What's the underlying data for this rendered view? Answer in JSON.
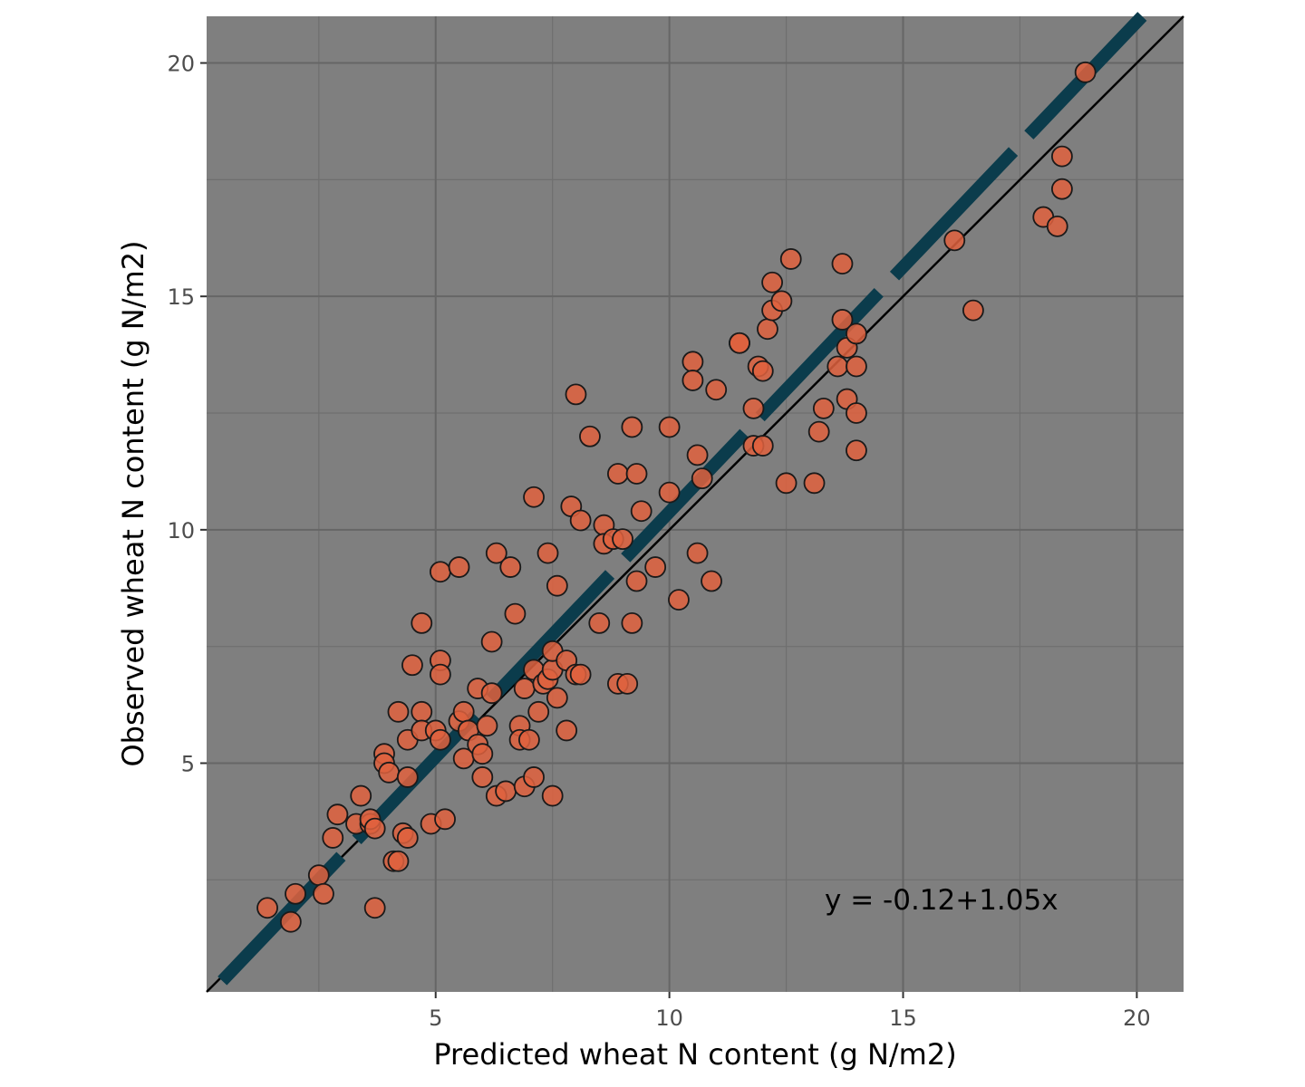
{
  "chart_data": {
    "type": "scatter",
    "title": "",
    "xlabel": "Predicted wheat N content (g N/m2)",
    "ylabel": "Observed wheat N content (g N/m2)",
    "xlim": [
      0.1,
      21
    ],
    "ylim": [
      0.1,
      21
    ],
    "x_major_ticks": [
      5,
      10,
      15,
      20
    ],
    "y_major_ticks": [
      5,
      10,
      15,
      20
    ],
    "x_tick_labels": [
      "5",
      "10",
      "15",
      "20"
    ],
    "y_tick_labels": [
      "5",
      "10",
      "15",
      "20"
    ],
    "x_minor_ticks": [
      2.5,
      7.5,
      12.5,
      17.5
    ],
    "y_minor_ticks": [
      2.5,
      7.5,
      12.5,
      17.5
    ],
    "grid": true,
    "annotation": "y = -0.12+1.05x",
    "identity_line": {
      "intercept": 0,
      "slope": 1,
      "color": "#000000"
    },
    "regression_line": {
      "intercept": -0.12,
      "slope": 1.05,
      "color": "#0b3c4c",
      "style": "dashed"
    },
    "colors": {
      "panel_bg": "#7f7f7f",
      "grid_major": "#666666",
      "grid_minor": "#6f6f6f",
      "point_fill": "#e0613e",
      "point_stroke": "#1a1a1a"
    },
    "series": [
      {
        "name": "observations",
        "points": [
          [
            1.4,
            1.9
          ],
          [
            1.9,
            1.6
          ],
          [
            2.0,
            2.2
          ],
          [
            2.5,
            2.6
          ],
          [
            2.6,
            2.2
          ],
          [
            2.8,
            3.4
          ],
          [
            2.9,
            3.9
          ],
          [
            3.3,
            3.7
          ],
          [
            3.4,
            4.3
          ],
          [
            3.6,
            3.7
          ],
          [
            3.6,
            3.8
          ],
          [
            3.7,
            3.6
          ],
          [
            3.7,
            1.9
          ],
          [
            3.9,
            5.2
          ],
          [
            3.9,
            5.0
          ],
          [
            4.0,
            4.8
          ],
          [
            4.1,
            2.9
          ],
          [
            4.2,
            2.9
          ],
          [
            4.2,
            6.1
          ],
          [
            4.3,
            3.5
          ],
          [
            4.4,
            3.4
          ],
          [
            4.4,
            4.7
          ],
          [
            4.4,
            5.5
          ],
          [
            4.5,
            7.1
          ],
          [
            4.7,
            6.1
          ],
          [
            4.7,
            5.7
          ],
          [
            4.7,
            8.0
          ],
          [
            4.9,
            3.7
          ],
          [
            5.0,
            5.7
          ],
          [
            5.1,
            5.5
          ],
          [
            5.1,
            7.2
          ],
          [
            5.1,
            6.9
          ],
          [
            5.1,
            9.1
          ],
          [
            5.2,
            3.8
          ],
          [
            5.5,
            9.2
          ],
          [
            5.5,
            5.9
          ],
          [
            5.6,
            6.1
          ],
          [
            5.6,
            5.1
          ],
          [
            5.7,
            5.7
          ],
          [
            5.9,
            6.6
          ],
          [
            5.9,
            5.4
          ],
          [
            6.0,
            5.2
          ],
          [
            6.0,
            4.7
          ],
          [
            6.1,
            5.8
          ],
          [
            6.2,
            6.5
          ],
          [
            6.2,
            7.6
          ],
          [
            6.3,
            4.3
          ],
          [
            6.3,
            9.5
          ],
          [
            6.5,
            4.4
          ],
          [
            6.6,
            9.2
          ],
          [
            6.7,
            8.2
          ],
          [
            6.8,
            5.8
          ],
          [
            6.8,
            5.5
          ],
          [
            6.9,
            4.5
          ],
          [
            6.9,
            6.6
          ],
          [
            7.0,
            5.5
          ],
          [
            7.1,
            4.7
          ],
          [
            7.1,
            7.0
          ],
          [
            7.1,
            10.7
          ],
          [
            7.2,
            6.1
          ],
          [
            7.3,
            6.7
          ],
          [
            7.4,
            9.5
          ],
          [
            7.4,
            6.8
          ],
          [
            7.5,
            7.0
          ],
          [
            7.5,
            7.4
          ],
          [
            7.5,
            4.3
          ],
          [
            7.6,
            6.4
          ],
          [
            7.6,
            8.8
          ],
          [
            7.8,
            5.7
          ],
          [
            7.8,
            7.2
          ],
          [
            7.9,
            10.5
          ],
          [
            8.0,
            12.9
          ],
          [
            8.0,
            6.9
          ],
          [
            8.1,
            10.2
          ],
          [
            8.1,
            6.9
          ],
          [
            8.3,
            12.0
          ],
          [
            8.5,
            8.0
          ],
          [
            8.6,
            10.1
          ],
          [
            8.6,
            9.7
          ],
          [
            8.8,
            9.8
          ],
          [
            8.9,
            11.2
          ],
          [
            8.9,
            6.7
          ],
          [
            9.0,
            9.8
          ],
          [
            9.1,
            6.7
          ],
          [
            9.2,
            12.2
          ],
          [
            9.2,
            8.0
          ],
          [
            9.3,
            11.2
          ],
          [
            9.3,
            8.9
          ],
          [
            9.4,
            10.4
          ],
          [
            9.7,
            9.2
          ],
          [
            10.0,
            12.2
          ],
          [
            10.0,
            10.8
          ],
          [
            10.2,
            8.5
          ],
          [
            10.5,
            13.6
          ],
          [
            10.5,
            13.2
          ],
          [
            10.6,
            9.5
          ],
          [
            10.6,
            11.6
          ],
          [
            10.7,
            11.1
          ],
          [
            10.9,
            8.9
          ],
          [
            11.0,
            13.0
          ],
          [
            11.5,
            14.0
          ],
          [
            11.5,
            14.0
          ],
          [
            11.8,
            12.6
          ],
          [
            11.8,
            11.8
          ],
          [
            11.9,
            13.5
          ],
          [
            12.0,
            11.8
          ],
          [
            12.0,
            13.4
          ],
          [
            12.1,
            14.3
          ],
          [
            12.2,
            14.7
          ],
          [
            12.2,
            15.3
          ],
          [
            12.4,
            14.9
          ],
          [
            12.5,
            11.0
          ],
          [
            12.6,
            15.8
          ],
          [
            13.1,
            11.0
          ],
          [
            13.2,
            12.1
          ],
          [
            13.3,
            12.6
          ],
          [
            13.6,
            13.5
          ],
          [
            13.7,
            15.7
          ],
          [
            13.7,
            14.5
          ],
          [
            13.8,
            13.9
          ],
          [
            13.8,
            12.8
          ],
          [
            14.0,
            14.2
          ],
          [
            14.0,
            13.5
          ],
          [
            14.0,
            12.5
          ],
          [
            14.0,
            11.7
          ],
          [
            16.1,
            16.2
          ],
          [
            16.5,
            14.7
          ],
          [
            18.0,
            16.7
          ],
          [
            18.3,
            16.5
          ],
          [
            18.4,
            18.0
          ],
          [
            18.4,
            17.3
          ],
          [
            18.9,
            19.8
          ]
        ]
      }
    ]
  }
}
